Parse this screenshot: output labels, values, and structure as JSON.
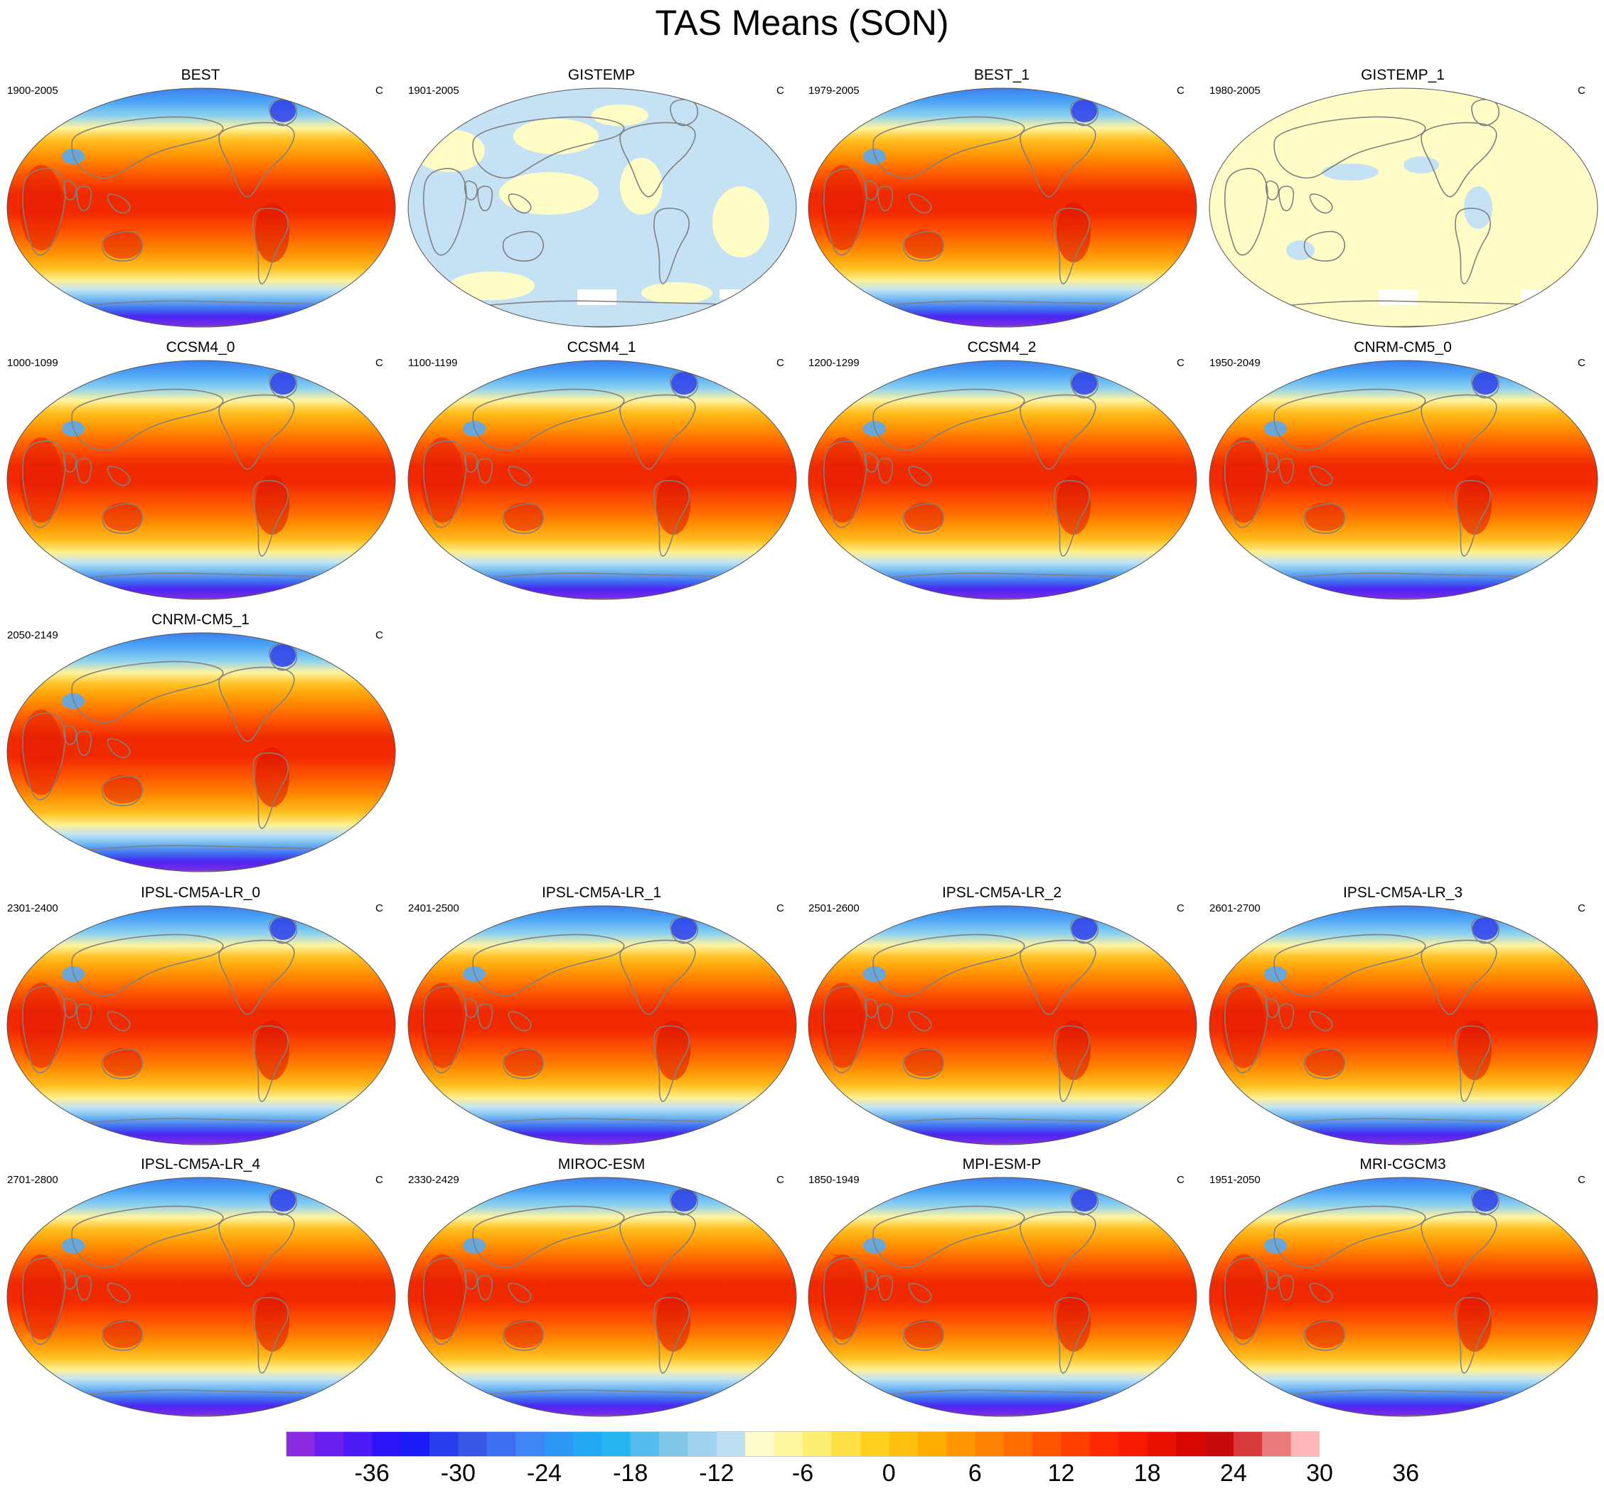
{
  "figure": {
    "title": "TAS Means (SON)"
  },
  "panels": [
    {
      "title": "BEST",
      "period": "1900-2005",
      "unit": "C",
      "style": "model"
    },
    {
      "title": "GISTEMP",
      "period": "1901-2005",
      "unit": "C",
      "style": "anomaly"
    },
    {
      "title": "BEST_1",
      "period": "1979-2005",
      "unit": "C",
      "style": "model"
    },
    {
      "title": "GISTEMP_1",
      "period": "1980-2005",
      "unit": "C",
      "style": "anomaly-light"
    },
    {
      "title": "CCSM4_0",
      "period": "1000-1099",
      "unit": "C",
      "style": "model"
    },
    {
      "title": "CCSM4_1",
      "period": "1100-1199",
      "unit": "C",
      "style": "model"
    },
    {
      "title": "CCSM4_2",
      "period": "1200-1299",
      "unit": "C",
      "style": "model"
    },
    {
      "title": "CNRM-CM5_0",
      "period": "1950-2049",
      "unit": "C",
      "style": "model"
    },
    {
      "title": "CNRM-CM5_1",
      "period": "2050-2149",
      "unit": "C",
      "style": "model"
    },
    {
      "title": "IPSL-CM5A-LR_0",
      "period": "2301-2400",
      "unit": "C",
      "style": "model"
    },
    {
      "title": "IPSL-CM5A-LR_1",
      "period": "2401-2500",
      "unit": "C",
      "style": "model"
    },
    {
      "title": "IPSL-CM5A-LR_2",
      "period": "2501-2600",
      "unit": "C",
      "style": "model"
    },
    {
      "title": "IPSL-CM5A-LR_3",
      "period": "2601-2700",
      "unit": "C",
      "style": "model"
    },
    {
      "title": "IPSL-CM5A-LR_4",
      "period": "2701-2800",
      "unit": "C",
      "style": "model"
    },
    {
      "title": "MIROC-ESM",
      "period": "2330-2429",
      "unit": "C",
      "style": "model"
    },
    {
      "title": "MPI-ESM-P",
      "period": "1850-1949",
      "unit": "C",
      "style": "model"
    },
    {
      "title": "MRI-CGCM3",
      "period": "1951-2050",
      "unit": "C",
      "style": "model"
    }
  ],
  "colorbar": {
    "labels": [
      "-36",
      "-30",
      "-24",
      "-18",
      "-12",
      "-6",
      "0",
      "6",
      "12",
      "18",
      "24",
      "30",
      "36"
    ],
    "colors": [
      "#8a2be2",
      "#6a1ef0",
      "#4b1af5",
      "#2d14f8",
      "#1a1cf5",
      "#2a3cef",
      "#3a58e8",
      "#3e6ff0",
      "#3f86f5",
      "#2f98f7",
      "#22a8f5",
      "#26b5f2",
      "#55bdee",
      "#80c8ea",
      "#a0d3ee",
      "#bee0f3",
      "#fffcce",
      "#fff6a0",
      "#ffed70",
      "#ffe045",
      "#ffd020",
      "#ffbf10",
      "#ffac00",
      "#ff9700",
      "#ff8200",
      "#ff6c00",
      "#ff5500",
      "#ff3f00",
      "#ff2800",
      "#f61a00",
      "#e81000",
      "#d80800",
      "#c80a0a",
      "#d83a3a",
      "#ec7a7a",
      "#ffb7b7"
    ]
  }
}
